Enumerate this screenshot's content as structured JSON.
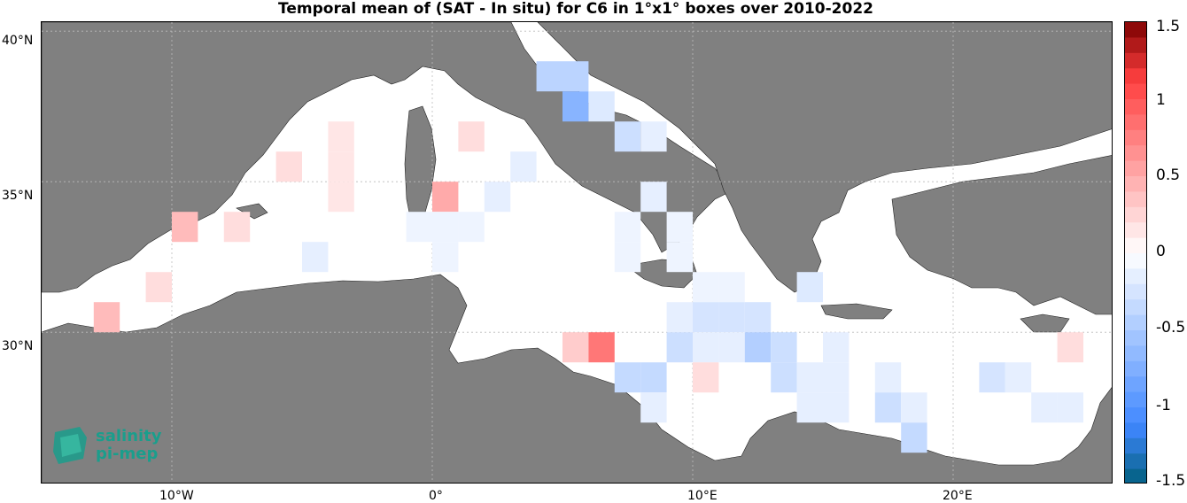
{
  "map": {
    "title": "Temporal mean of (SAT - In situ) for C6 in 1°x1° boxes over 2010-2022",
    "lat_labels": [
      "40°N",
      "35°N",
      "30°N"
    ],
    "lon_labels": [
      "10°W",
      "0°",
      "10°E",
      "20°E"
    ],
    "colors": {
      "land": "#808080",
      "sea": "#ffffff"
    }
  },
  "colorbar": {
    "labels": [
      "1.5",
      "1",
      "0.5",
      "0",
      "-0.5",
      "-1",
      "-1.5"
    ],
    "range": [
      -1.5,
      1.5
    ]
  },
  "logo": {
    "line1": "salinity",
    "line2": "pi-mep",
    "color": "#1a9e8c"
  },
  "chart_data": {
    "type": "heatmap",
    "title": "Temporal mean of (SAT - In situ) for C6 in 1°x1° boxes over 2010-2022",
    "xlabel": "",
    "ylabel": "",
    "cell_units": "1°x1° boxes",
    "cells": [
      {
        "lon": 4.5,
        "lat": 38.5,
        "value": -0.4
      },
      {
        "lon": 5.5,
        "lat": 38.5,
        "value": -0.4
      },
      {
        "lon": 5.5,
        "lat": 37.5,
        "value": -0.7
      },
      {
        "lon": 6.5,
        "lat": 37.5,
        "value": -0.2
      },
      {
        "lon": 7.5,
        "lat": 36.5,
        "value": -0.3
      },
      {
        "lon": 8.5,
        "lat": 36.5,
        "value": -0.15
      },
      {
        "lon": -3.5,
        "lat": 36.5,
        "value": 0.15
      },
      {
        "lon": -3.5,
        "lat": 35.5,
        "value": 0.15
      },
      {
        "lon": -3.5,
        "lat": 34.5,
        "value": 0.15
      },
      {
        "lon": 1.5,
        "lat": 36.5,
        "value": 0.2
      },
      {
        "lon": -5.5,
        "lat": 35.5,
        "value": 0.2
      },
      {
        "lon": 3.5,
        "lat": 35.5,
        "value": -0.15
      },
      {
        "lon": 0.5,
        "lat": 34.5,
        "value": 0.5
      },
      {
        "lon": 2.5,
        "lat": 34.5,
        "value": -0.15
      },
      {
        "lon": 8.5,
        "lat": 34.5,
        "value": -0.15
      },
      {
        "lon": -9.5,
        "lat": 33.5,
        "value": 0.4
      },
      {
        "lon": -7.5,
        "lat": 33.5,
        "value": 0.2
      },
      {
        "lon": -0.5,
        "lat": 33.5,
        "value": -0.1
      },
      {
        "lon": 0.5,
        "lat": 33.5,
        "value": -0.1
      },
      {
        "lon": 1.5,
        "lat": 33.5,
        "value": -0.1
      },
      {
        "lon": 7.5,
        "lat": 33.5,
        "value": -0.1
      },
      {
        "lon": 9.5,
        "lat": 33.5,
        "value": -0.1
      },
      {
        "lon": -4.5,
        "lat": 32.5,
        "value": -0.15
      },
      {
        "lon": 0.5,
        "lat": 32.5,
        "value": -0.1
      },
      {
        "lon": 7.5,
        "lat": 32.5,
        "value": -0.1
      },
      {
        "lon": 9.5,
        "lat": 32.5,
        "value": -0.1
      },
      {
        "lon": -10.5,
        "lat": 31.5,
        "value": 0.2
      },
      {
        "lon": 10.5,
        "lat": 31.5,
        "value": -0.1
      },
      {
        "lon": 11.5,
        "lat": 31.5,
        "value": -0.1
      },
      {
        "lon": 14.5,
        "lat": 31.5,
        "value": -0.2
      },
      {
        "lon": -12.5,
        "lat": 30.5,
        "value": 0.4
      },
      {
        "lon": 9.5,
        "lat": 30.5,
        "value": -0.15
      },
      {
        "lon": 10.5,
        "lat": 30.5,
        "value": -0.25
      },
      {
        "lon": 11.5,
        "lat": 30.5,
        "value": -0.25
      },
      {
        "lon": 12.5,
        "lat": 30.5,
        "value": -0.25
      },
      {
        "lon": 5.5,
        "lat": 29.5,
        "value": 0.3
      },
      {
        "lon": 6.5,
        "lat": 29.5,
        "value": 0.8
      },
      {
        "lon": 9.5,
        "lat": 29.5,
        "value": -0.3
      },
      {
        "lon": 10.5,
        "lat": 29.5,
        "value": -0.15
      },
      {
        "lon": 11.5,
        "lat": 29.5,
        "value": -0.15
      },
      {
        "lon": 12.5,
        "lat": 29.5,
        "value": -0.45
      },
      {
        "lon": 13.5,
        "lat": 29.5,
        "value": -0.3
      },
      {
        "lon": 15.5,
        "lat": 29.5,
        "value": -0.15
      },
      {
        "lon": 7.5,
        "lat": 28.5,
        "value": -0.35
      },
      {
        "lon": 8.5,
        "lat": 28.5,
        "value": -0.35
      },
      {
        "lon": 10.5,
        "lat": 28.5,
        "value": 0.2
      },
      {
        "lon": 13.5,
        "lat": 28.5,
        "value": -0.3
      },
      {
        "lon": 14.5,
        "lat": 28.5,
        "value": -0.15
      },
      {
        "lon": 15.5,
        "lat": 28.5,
        "value": -0.15
      },
      {
        "lon": 17.5,
        "lat": 28.5,
        "value": -0.15
      },
      {
        "lon": 21.5,
        "lat": 28.5,
        "value": -0.25
      },
      {
        "lon": 22.5,
        "lat": 28.5,
        "value": -0.15
      },
      {
        "lon": 24.5,
        "lat": 29.5,
        "value": 0.2
      },
      {
        "lon": 8.5,
        "lat": 27.5,
        "value": -0.15
      },
      {
        "lon": 14.5,
        "lat": 27.5,
        "value": -0.15
      },
      {
        "lon": 15.5,
        "lat": 27.5,
        "value": -0.15
      },
      {
        "lon": 17.5,
        "lat": 27.5,
        "value": -0.3
      },
      {
        "lon": 18.5,
        "lat": 27.5,
        "value": -0.15
      },
      {
        "lon": 23.5,
        "lat": 27.5,
        "value": -0.15
      },
      {
        "lon": 24.5,
        "lat": 27.5,
        "value": -0.15
      },
      {
        "lon": 18.5,
        "lat": 26.5,
        "value": -0.35
      }
    ]
  }
}
